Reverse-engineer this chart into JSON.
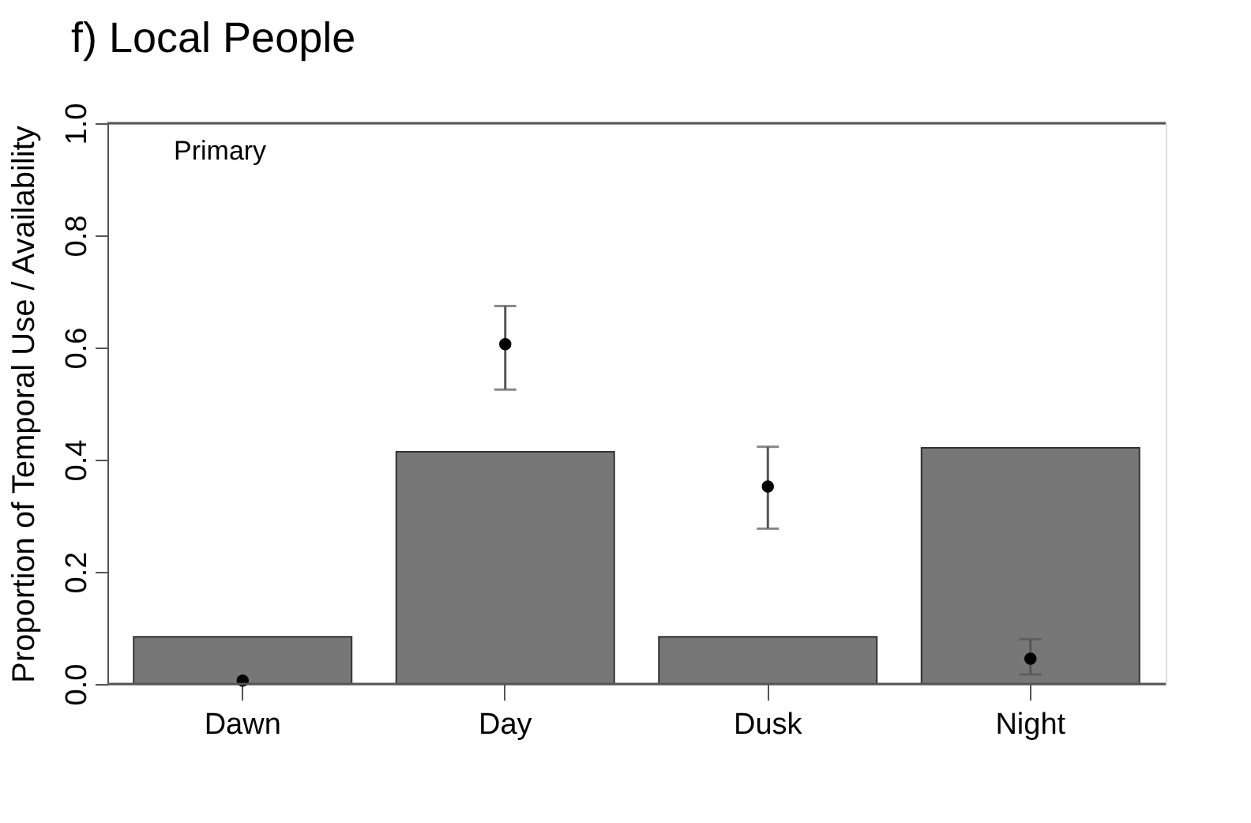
{
  "chart_data": {
    "type": "bar",
    "title": "f) Local People",
    "ylabel": "Proportion of Temporal Use / Availability",
    "categories": [
      "Dawn",
      "Day",
      "Dusk",
      "Night"
    ],
    "series": [
      {
        "color": "#777777",
        "values": [
          0.084,
          0.414,
          0.084,
          0.421
        ]
      },
      {
        "type": "scatter",
        "color": "#000000",
        "values": [
          0.006,
          0.606,
          0.352,
          0.045
        ],
        "errors": [
          null,
          [
            0.525,
            0.674
          ],
          [
            0.277,
            0.423
          ],
          [
            0.017,
            0.08
          ]
        ]
      }
    ],
    "ylim": [
      0,
      1.0
    ],
    "yticks": [
      {
        "value": 0,
        "label": "0.0"
      },
      0.2,
      0.4,
      0.6,
      0.8,
      {
        "value": 1,
        "label": "1.0"
      }
    ],
    "annotations": [
      "Primary"
    ],
    "grid": false,
    "marker": "circle"
  }
}
